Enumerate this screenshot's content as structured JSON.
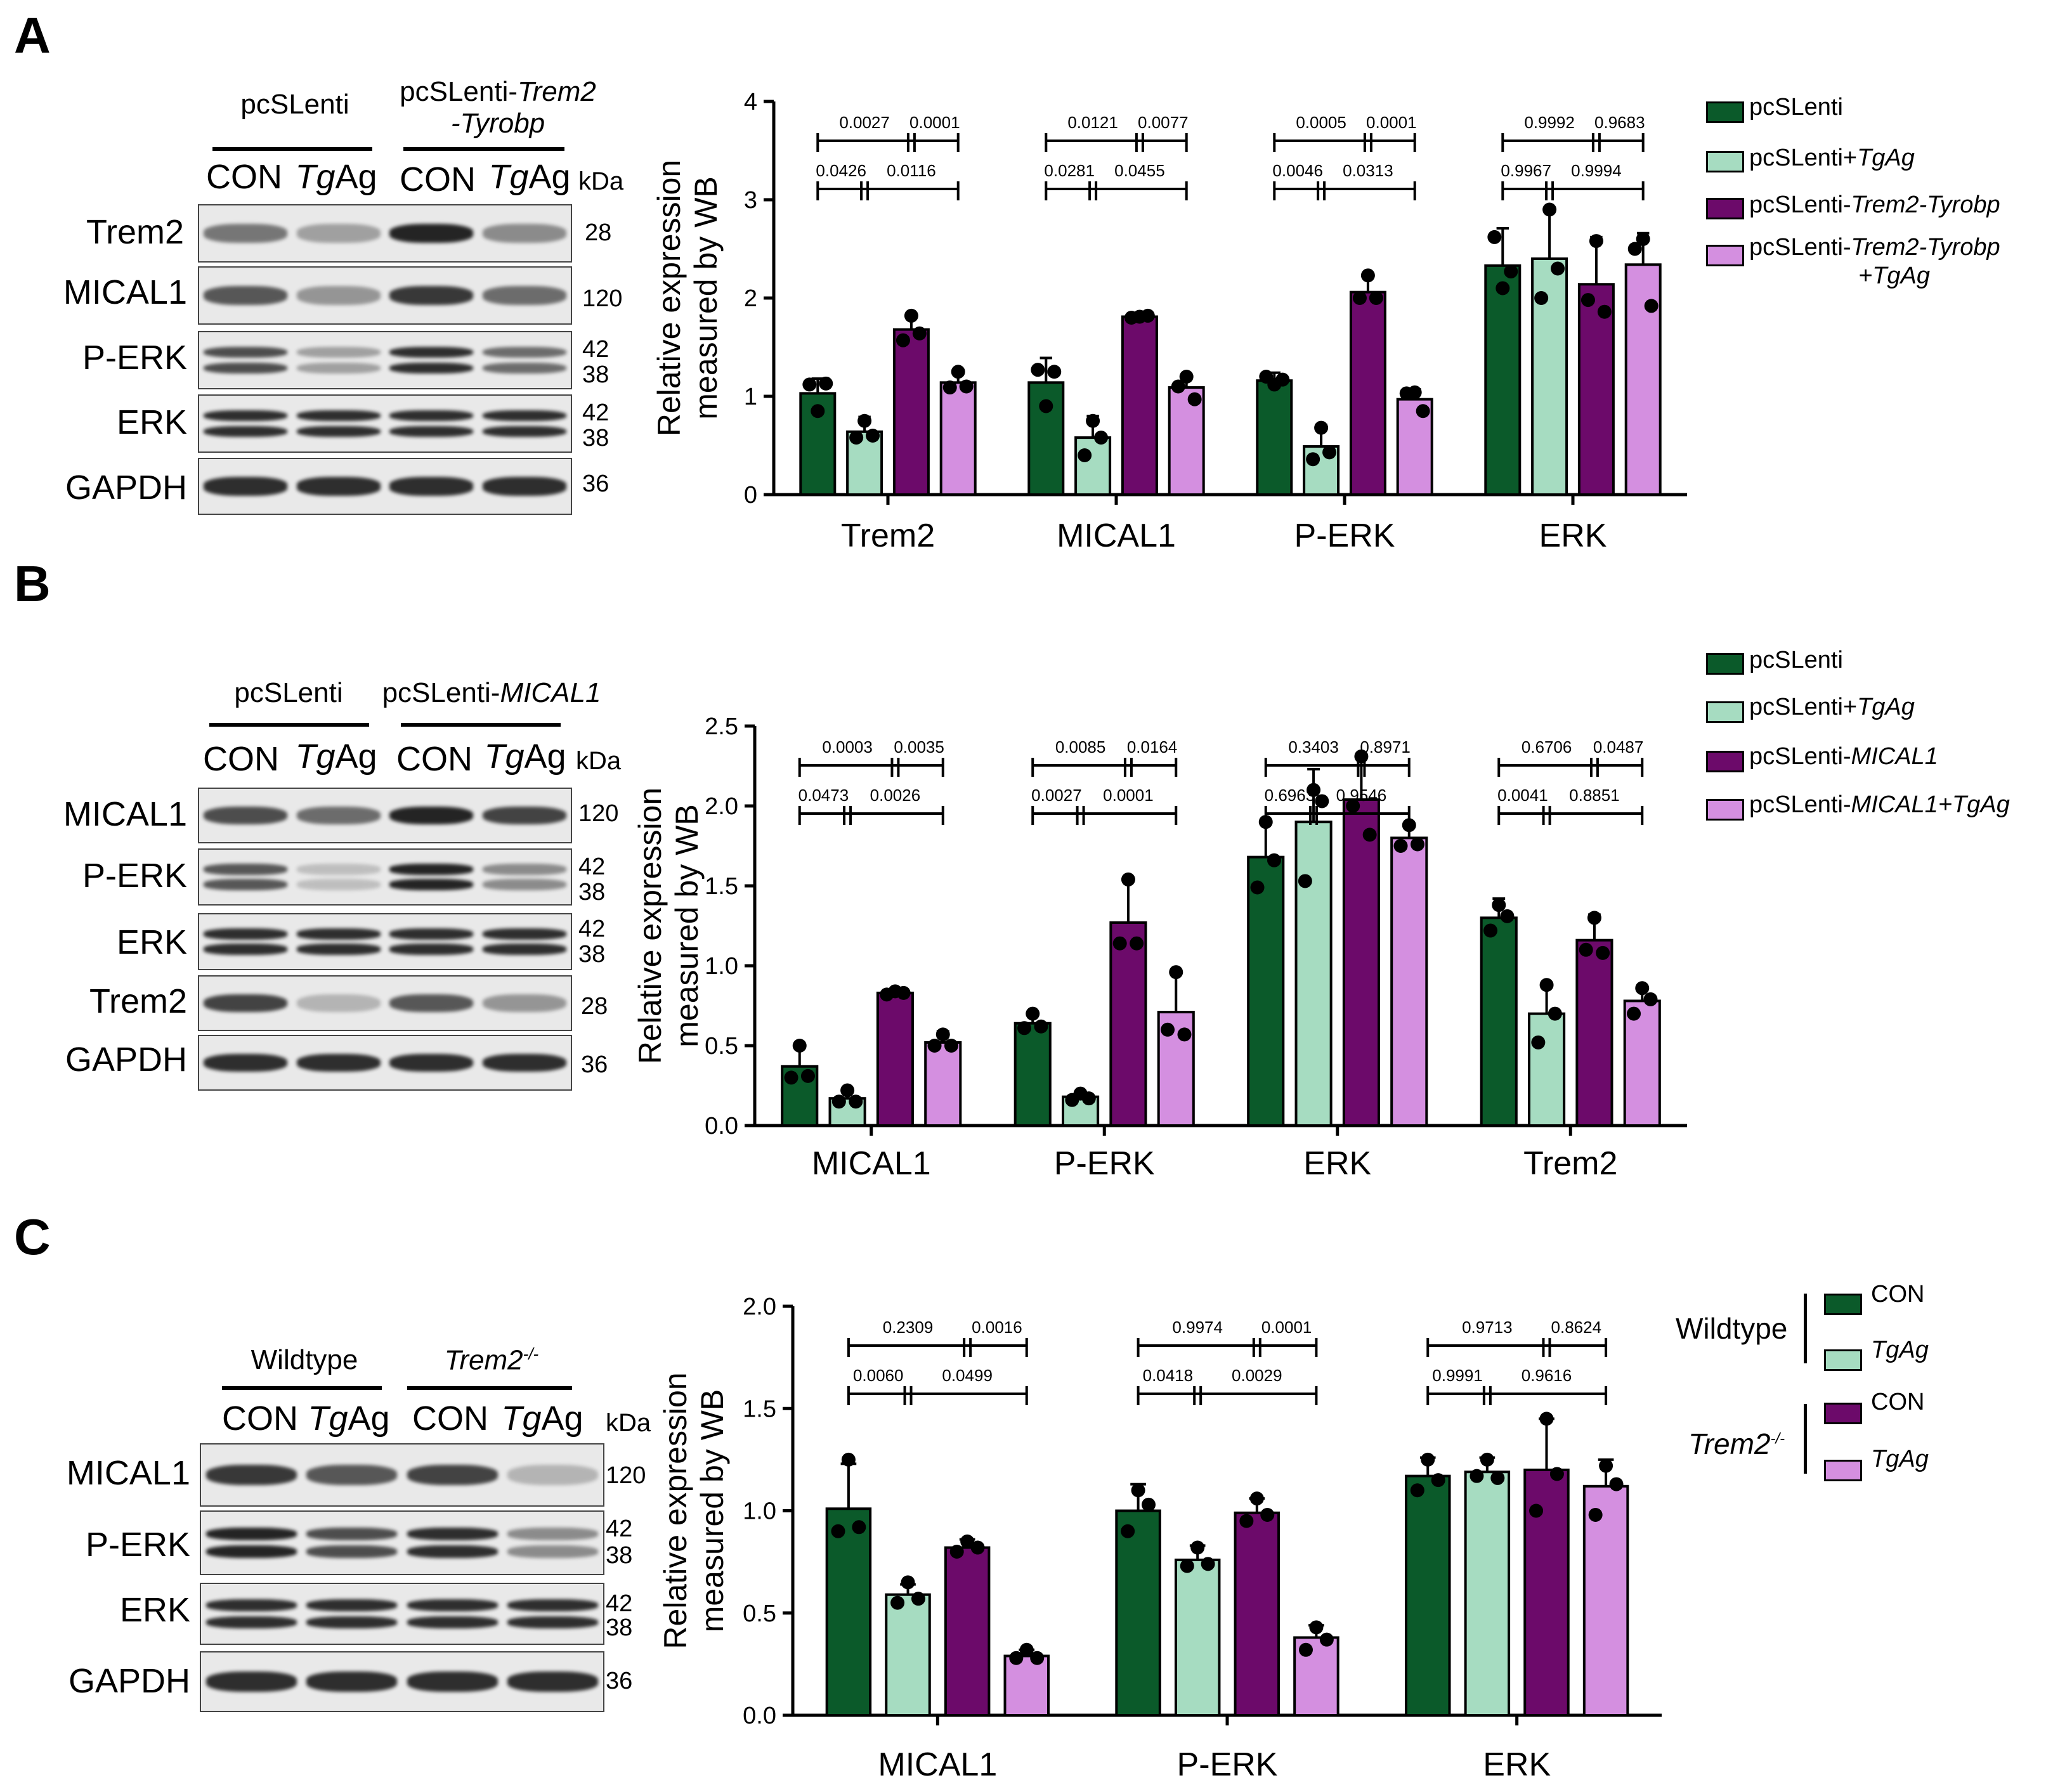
{
  "colors": {
    "dark_green": "#0b5a2a",
    "light_green": "#a6dcc1",
    "dark_purple": "#6c0a6a",
    "light_purple": "#d48fe0",
    "blot_bg": "#e9e9e9",
    "band": "#1a1a1a"
  },
  "panels": [
    {
      "letter": "A",
      "blot": {
        "groups": [
          {
            "text": "pcSLenti",
            "italic": ""
          },
          {
            "text": "pcSLenti-",
            "italic": "Trem2",
            "line2": "-Tyrobp"
          }
        ],
        "columns": [
          {
            "text": "CON",
            "italic": ""
          },
          {
            "text": "",
            "italic": "Tg",
            "suffix": "Ag"
          },
          {
            "text": "CON",
            "italic": ""
          },
          {
            "text": "",
            "italic": "Tg",
            "suffix": "Ag"
          }
        ],
        "kda": "kDa",
        "rows": [
          {
            "label": "Trem2",
            "sizes": [
              "28"
            ],
            "intensity": [
              0.55,
              0.35,
              0.95,
              0.45
            ]
          },
          {
            "label": "MICAL1",
            "sizes": [
              "120"
            ],
            "intensity": [
              0.7,
              0.4,
              0.85,
              0.6
            ]
          },
          {
            "label": "P-ERK",
            "sizes": [
              "42",
              "38"
            ],
            "intensity": [
              0.75,
              0.35,
              0.9,
              0.6
            ]
          },
          {
            "label": "ERK",
            "sizes": [
              "42",
              "38"
            ],
            "intensity": [
              0.9,
              0.9,
              0.9,
              0.9
            ]
          },
          {
            "label": "GAPDH",
            "sizes": [
              "36"
            ],
            "intensity": [
              0.9,
              0.9,
              0.9,
              0.9
            ]
          }
        ]
      },
      "legend": {
        "items": [
          {
            "text": "pcSLenti",
            "italic": "",
            "suffix": "",
            "line2": "",
            "color": "#0b5a2a"
          },
          {
            "text": "pcSLenti+",
            "italic": "TgAg",
            "suffix": "",
            "line2": "",
            "color": "#a6dcc1"
          },
          {
            "text": "pcSLenti-",
            "italic": "Trem2-Tyrobp",
            "suffix": "",
            "line2": "",
            "color": "#6c0a6a"
          },
          {
            "text": "pcSLenti-",
            "italic": "Trem2-Tyrobp",
            "suffix": "",
            "line2": "+TgAg",
            "color": "#d48fe0"
          }
        ]
      }
    },
    {
      "letter": "B",
      "blot": {
        "groups": [
          {
            "text": "pcSLenti",
            "italic": ""
          },
          {
            "text": "pcSLenti-",
            "italic": "MICAL1"
          }
        ],
        "columns": [
          {
            "text": "CON",
            "italic": ""
          },
          {
            "text": "",
            "italic": "Tg",
            "suffix": "Ag"
          },
          {
            "text": "CON",
            "italic": ""
          },
          {
            "text": "",
            "italic": "Tg",
            "suffix": "Ag"
          }
        ],
        "kda": "kDa",
        "rows": [
          {
            "label": "MICAL1",
            "sizes": [
              "120"
            ],
            "intensity": [
              0.75,
              0.6,
              0.95,
              0.8
            ]
          },
          {
            "label": "P-ERK",
            "sizes": [
              "42",
              "38"
            ],
            "intensity": [
              0.7,
              0.2,
              0.95,
              0.45
            ]
          },
          {
            "label": "ERK",
            "sizes": [
              "42",
              "38"
            ],
            "intensity": [
              0.9,
              0.9,
              0.9,
              0.9
            ]
          },
          {
            "label": "Trem2",
            "sizes": [
              "28"
            ],
            "intensity": [
              0.8,
              0.25,
              0.7,
              0.4
            ]
          },
          {
            "label": "GAPDH",
            "sizes": [
              "36"
            ],
            "intensity": [
              0.9,
              0.9,
              0.9,
              0.9
            ]
          }
        ]
      },
      "legend": {
        "items": [
          {
            "text": "pcSLenti",
            "italic": "",
            "suffix": "",
            "line2": "",
            "color": "#0b5a2a"
          },
          {
            "text": "pcSLenti+",
            "italic": "TgAg",
            "suffix": "",
            "line2": "",
            "color": "#a6dcc1"
          },
          {
            "text": "pcSLenti-",
            "italic": "MICAL1",
            "suffix": "",
            "line2": "",
            "color": "#6c0a6a"
          },
          {
            "text": "pcSLenti-",
            "italic": "MICAL1+TgAg",
            "suffix": "",
            "line2": "",
            "color": "#d48fe0"
          }
        ]
      }
    },
    {
      "letter": "C",
      "blot": {
        "groups": [
          {
            "text": "Wildtype",
            "italic": ""
          },
          {
            "text": "",
            "italic": "Trem2",
            "sup": "-/-"
          }
        ],
        "columns": [
          {
            "text": "CON",
            "italic": ""
          },
          {
            "text": "",
            "italic": "Tg",
            "suffix": "Ag"
          },
          {
            "text": "CON",
            "italic": ""
          },
          {
            "text": "",
            "italic": "Tg",
            "suffix": "Ag"
          }
        ],
        "kda": "kDa",
        "rows": [
          {
            "label": "MICAL1",
            "sizes": [
              "120"
            ],
            "intensity": [
              0.85,
              0.7,
              0.8,
              0.25
            ]
          },
          {
            "label": "P-ERK",
            "sizes": [
              "42",
              "38"
            ],
            "intensity": [
              0.95,
              0.75,
              0.9,
              0.45
            ]
          },
          {
            "label": "ERK",
            "sizes": [
              "42",
              "38"
            ],
            "intensity": [
              0.9,
              0.9,
              0.9,
              0.9
            ]
          },
          {
            "label": "GAPDH",
            "sizes": [
              "36"
            ],
            "intensity": [
              0.9,
              0.9,
              0.9,
              0.9
            ]
          }
        ]
      },
      "legend": {
        "group1": "Wildtype",
        "group2": "Trem2",
        "group2_sup": "-/-",
        "items": [
          {
            "text": "CON",
            "italic": "",
            "color": "#0b5a2a"
          },
          {
            "text": "",
            "italic": "TgAg",
            "color": "#a6dcc1"
          },
          {
            "text": "CON",
            "italic": "",
            "color": "#6c0a6a"
          },
          {
            "text": "",
            "italic": "TgAg",
            "color": "#d48fe0"
          }
        ]
      }
    }
  ],
  "chart_data": [
    {
      "type": "bar",
      "panel": "A",
      "ylabel": [
        "Relative expression",
        "measured by WB"
      ],
      "ylim": [
        0,
        4
      ],
      "yticks": [
        "0",
        "1",
        "2",
        "3",
        "4"
      ],
      "categories": [
        "Trem2",
        "MICAL1",
        "P-ERK",
        "ERK"
      ],
      "series": [
        {
          "name": "pcSLenti",
          "values": [
            1.03,
            1.14,
            1.16,
            2.33
          ],
          "err": [
            0.15,
            0.25,
            0.08,
            0.38
          ],
          "points": [
            [
              0.85,
              1.12,
              1.13
            ],
            [
              0.9,
              1.27,
              1.25
            ],
            [
              1.12,
              1.2,
              1.17
            ],
            [
              2.1,
              2.62,
              2.27
            ]
          ]
        },
        {
          "name": "pcSLenti+TgAg",
          "values": [
            0.64,
            0.58,
            0.49,
            2.4
          ],
          "err": [
            0.15,
            0.22,
            0.22,
            0.52
          ],
          "points": [
            [
              0.75,
              0.58,
              0.6
            ],
            [
              0.75,
              0.4,
              0.58
            ],
            [
              0.68,
              0.36,
              0.43
            ],
            [
              2.9,
              2.0,
              2.3
            ]
          ]
        },
        {
          "name": "pcSLenti-Trem2-Tyrobp",
          "values": [
            1.68,
            1.81,
            2.06,
            2.14
          ],
          "err": [
            0.16,
            0.03,
            0.18,
            0.48
          ],
          "points": [
            [
              1.82,
              1.57,
              1.64
            ],
            [
              1.81,
              1.8,
              1.82
            ],
            [
              2.23,
              2.0,
              2.0
            ],
            [
              2.58,
              1.98,
              1.86
            ]
          ]
        },
        {
          "name": "pcSLenti-Trem2-Tyrobp+TgAg",
          "values": [
            1.14,
            1.09,
            0.97,
            2.34
          ],
          "err": [
            0.1,
            0.13,
            0.1,
            0.32
          ],
          "points": [
            [
              1.25,
              1.09,
              1.1
            ],
            [
              1.2,
              1.1,
              0.97
            ],
            [
              1.04,
              1.03,
              0.85
            ],
            [
              2.6,
              2.5,
              1.92
            ]
          ]
        }
      ],
      "comparisons": [
        {
          "top": [
            "0.0027",
            "0.0001"
          ],
          "bottom": [
            "0.0426",
            "0.0116"
          ]
        },
        {
          "top": [
            "0.0121",
            "0.0077"
          ],
          "bottom": [
            "0.0281",
            "0.0455"
          ]
        },
        {
          "top": [
            "0.0005",
            "0.0001"
          ],
          "bottom": [
            "0.0046",
            "0.0313"
          ]
        },
        {
          "top": [
            "0.9992",
            "0.9683"
          ],
          "bottom": [
            "0.9967",
            "0.9994"
          ]
        }
      ]
    },
    {
      "type": "bar",
      "panel": "B",
      "ylabel": [
        "Relative expression",
        "measured by WB"
      ],
      "ylim": [
        0,
        2.5
      ],
      "yticks": [
        "0.0",
        "0.5",
        "1.0",
        "1.5",
        "2.0",
        "2.5"
      ],
      "categories": [
        "MICAL1",
        "P-ERK",
        "ERK",
        "Trem2"
      ],
      "series": [
        {
          "name": "pcSLenti",
          "values": [
            0.37,
            0.64,
            1.68,
            1.3
          ],
          "err": [
            0.13,
            0.06,
            0.21,
            0.12
          ],
          "points": [
            [
              0.5,
              0.3,
              0.31
            ],
            [
              0.7,
              0.61,
              0.62
            ],
            [
              1.9,
              1.49,
              1.66
            ],
            [
              1.38,
              1.22,
              1.31
            ]
          ]
        },
        {
          "name": "pcSLenti+TgAg",
          "values": [
            0.17,
            0.18,
            1.9,
            0.7
          ],
          "err": [
            0.04,
            0.03,
            0.33,
            0.18
          ],
          "points": [
            [
              0.22,
              0.15,
              0.15
            ],
            [
              0.2,
              0.16,
              0.17
            ],
            [
              2.1,
              1.53,
              2.03
            ],
            [
              0.88,
              0.52,
              0.7
            ]
          ]
        },
        {
          "name": "pcSLenti-MICAL1",
          "values": [
            0.83,
            1.27,
            2.04,
            1.16
          ],
          "err": [
            0.02,
            0.28,
            0.28,
            0.16
          ],
          "points": [
            [
              0.84,
              0.82,
              0.83
            ],
            [
              1.54,
              1.14,
              1.14
            ],
            [
              2.31,
              2.0,
              1.82
            ],
            [
              1.3,
              1.1,
              1.08
            ]
          ]
        },
        {
          "name": "pcSLenti-MICAL1+TgAg",
          "values": [
            0.52,
            0.71,
            1.8,
            0.78
          ],
          "err": [
            0.07,
            0.25,
            0.07,
            0.08
          ],
          "points": [
            [
              0.57,
              0.5,
              0.5
            ],
            [
              0.96,
              0.6,
              0.57
            ],
            [
              1.88,
              1.75,
              1.76
            ],
            [
              0.86,
              0.7,
              0.79
            ]
          ]
        }
      ],
      "comparisons": [
        {
          "top": [
            "0.0003",
            "0.0035"
          ],
          "bottom": [
            "0.0473",
            "0.0026"
          ]
        },
        {
          "top": [
            "0.0085",
            "0.0164"
          ],
          "bottom": [
            "0.0027",
            "0.0001"
          ]
        },
        {
          "top": [
            "0.3403",
            "0.8971"
          ],
          "bottom": [
            "0.6963",
            "0.9546"
          ]
        },
        {
          "top": [
            "0.6706",
            "0.0487"
          ],
          "bottom": [
            "0.0041",
            "0.8851"
          ]
        }
      ]
    },
    {
      "type": "bar",
      "panel": "C",
      "ylabel": [
        "Relative expression",
        "measured by WB"
      ],
      "ylim": [
        0,
        2.0
      ],
      "yticks": [
        "0.0",
        "0.5",
        "1.0",
        "1.5",
        "2.0"
      ],
      "categories": [
        "MICAL1",
        "P-ERK",
        "ERK"
      ],
      "series": [
        {
          "name": "Wildtype CON",
          "values": [
            1.01,
            1.0,
            1.17
          ],
          "err": [
            0.22,
            0.13,
            0.09
          ],
          "points": [
            [
              1.25,
              0.9,
              0.92
            ],
            [
              1.1,
              0.9,
              1.03
            ],
            [
              1.25,
              1.1,
              1.15
            ]
          ]
        },
        {
          "name": "Wildtype TgAg",
          "values": [
            0.59,
            0.76,
            1.19
          ],
          "err": [
            0.05,
            0.07,
            0.07
          ],
          "points": [
            [
              0.65,
              0.55,
              0.57
            ],
            [
              0.82,
              0.73,
              0.74
            ],
            [
              1.25,
              1.17,
              1.16
            ]
          ]
        },
        {
          "name": "Trem2-/- CON",
          "values": [
            0.82,
            0.99,
            1.2
          ],
          "err": [
            0.04,
            0.07,
            0.25
          ],
          "points": [
            [
              0.85,
              0.8,
              0.82
            ],
            [
              1.06,
              0.95,
              0.98
            ],
            [
              1.45,
              1.0,
              1.18
            ]
          ]
        },
        {
          "name": "Trem2-/- TgAg",
          "values": [
            0.29,
            0.38,
            1.12
          ],
          "err": [
            0.03,
            0.06,
            0.13
          ],
          "points": [
            [
              0.32,
              0.28,
              0.28
            ],
            [
              0.43,
              0.32,
              0.37
            ],
            [
              1.22,
              0.98,
              1.13
            ]
          ]
        }
      ],
      "comparisons": [
        {
          "top": [
            "0.2309",
            "0.0016"
          ],
          "bottom": [
            "0.0060",
            "0.0499"
          ]
        },
        {
          "top": [
            "0.9974",
            "0.0001"
          ],
          "bottom": [
            "0.0418",
            "0.0029"
          ]
        },
        {
          "top": [
            "0.9713",
            "0.8624"
          ],
          "bottom": [
            "0.9991",
            "0.9616"
          ]
        }
      ]
    }
  ]
}
